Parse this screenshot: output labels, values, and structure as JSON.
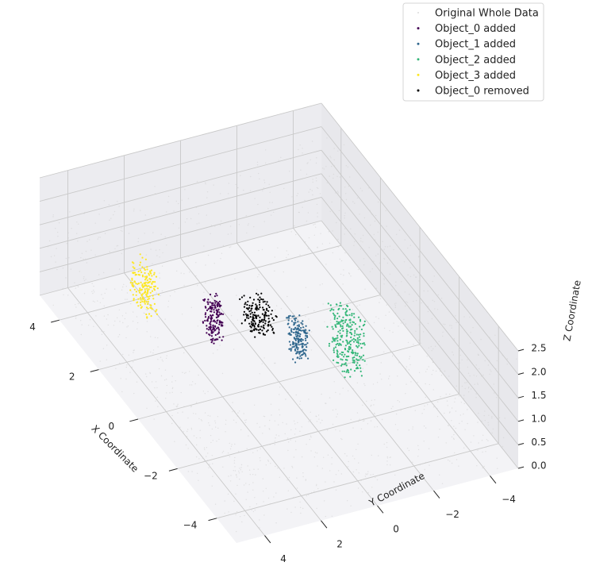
{
  "chart_data": {
    "type": "scatter",
    "projection": "3d",
    "title": "",
    "xlabel": "X Coordinate",
    "ylabel": "Y Coordinate",
    "zlabel": "Z Coordinate",
    "xlim": [
      -5,
      5
    ],
    "ylim": [
      -5,
      5
    ],
    "zlim": [
      0,
      2.5
    ],
    "x_ticks": [
      {
        "value": 4,
        "label": "4"
      },
      {
        "value": 2,
        "label": "2"
      },
      {
        "value": 0,
        "label": "0"
      },
      {
        "value": -2,
        "label": "−2"
      },
      {
        "value": -4,
        "label": "−4"
      }
    ],
    "y_ticks": [
      {
        "value": 4,
        "label": "4"
      },
      {
        "value": 2,
        "label": "2"
      },
      {
        "value": 0,
        "label": "0"
      },
      {
        "value": -2,
        "label": "−2"
      },
      {
        "value": -4,
        "label": "−4"
      }
    ],
    "z_ticks": [
      {
        "value": 0.0,
        "label": "0.0"
      },
      {
        "value": 0.5,
        "label": "0.5"
      },
      {
        "value": 1.0,
        "label": "1.0"
      },
      {
        "value": 1.5,
        "label": "1.5"
      },
      {
        "value": 2.0,
        "label": "2.0"
      },
      {
        "value": 2.5,
        "label": "2.5"
      }
    ],
    "grid": true,
    "legend_position": "top-right",
    "series": [
      {
        "name": "Original Whole Data",
        "color": "#d0d0d0"
      },
      {
        "name": "Object_0 added",
        "color": "#440154"
      },
      {
        "name": "Object_1 added",
        "color": "#31688e"
      },
      {
        "name": "Object_2 added",
        "color": "#35b779"
      },
      {
        "name": "Object_3 added",
        "color": "#fde725"
      },
      {
        "name": "Object_0 removed",
        "color": "#000000"
      }
    ],
    "clusters": [
      {
        "series": "Object_3 added",
        "center": [
          3.4,
          2.4,
          0.6
        ],
        "size": [
          0.9,
          0.5,
          0.9
        ]
      },
      {
        "series": "Object_0 added",
        "center": [
          1.6,
          1.2,
          0.7
        ],
        "size": [
          0.5,
          0.5,
          0.8
        ]
      },
      {
        "series": "Object_1 added",
        "center": [
          0.2,
          -0.8,
          0.7
        ],
        "size": [
          0.5,
          0.5,
          0.8
        ]
      },
      {
        "series": "Object_2 added",
        "center": [
          -0.6,
          -2.0,
          0.9
        ],
        "size": [
          1.0,
          0.8,
          1.2
        ]
      },
      {
        "series": "Object_0 removed",
        "center": [
          1.9,
          -0.6,
          0.3
        ],
        "size": [
          0.8,
          0.8,
          0.6
        ]
      }
    ]
  }
}
